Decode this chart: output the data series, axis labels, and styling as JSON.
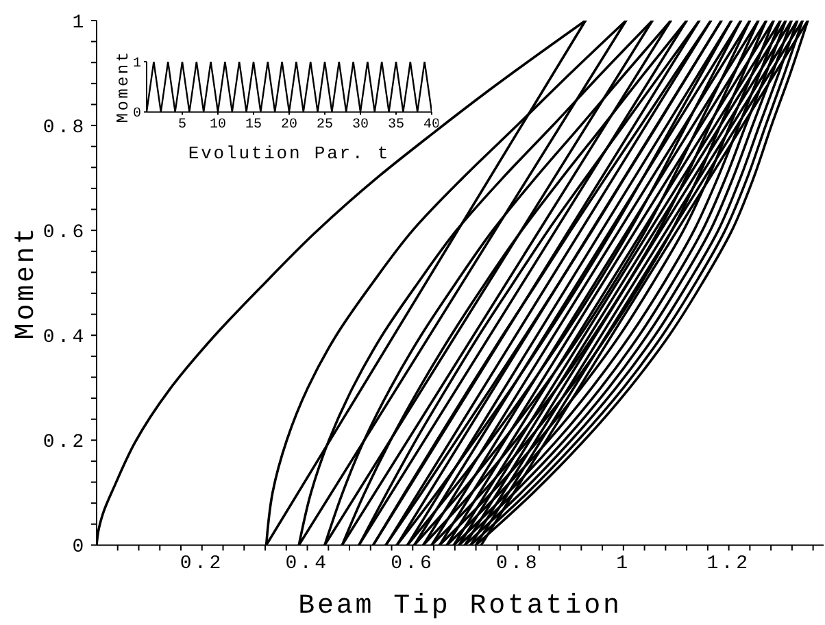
{
  "chart_data": [
    {
      "type": "line",
      "xlabel": "Beam Tip Rotation",
      "ylabel": "Moment",
      "color": "#000000",
      "series": [
        {
          "x": [
            0,
            0.003,
            0.012,
            0.035,
            0.073,
            0.138,
            0.222,
            0.312,
            0.412,
            0.532,
            0.637,
            0.746,
            0.928
          ],
          "values": [
            0,
            0.025,
            0.06,
            0.115,
            0.196,
            0.296,
            0.397,
            0.492,
            0.593,
            0.7,
            0.784,
            0.868,
            1
          ]
        },
        {
          "x": [
            0.928,
            0.322
          ],
          "values": [
            1,
            0
          ]
        },
        {
          "x": [
            0.322,
            0.334,
            0.361,
            0.401,
            0.455,
            0.524,
            0.6,
            0.695,
            0.798,
            0.9,
            1.005
          ],
          "values": [
            0,
            0.1,
            0.2,
            0.3,
            0.4,
            0.5,
            0.6,
            0.7,
            0.8,
            0.9,
            1
          ]
        },
        {
          "x": [
            1.005,
            0.384
          ],
          "values": [
            1,
            0
          ]
        },
        {
          "x": [
            0.384,
            0.407,
            0.441,
            0.486,
            0.542,
            0.61,
            0.683,
            0.771,
            0.866,
            0.959,
            1.055
          ],
          "values": [
            0,
            0.1,
            0.2,
            0.3,
            0.4,
            0.5,
            0.6,
            0.7,
            0.8,
            0.9,
            1
          ]
        },
        {
          "x": [
            1.055,
            0.433
          ],
          "values": [
            1,
            0
          ]
        },
        {
          "x": [
            0.433,
            0.467,
            0.508,
            0.558,
            0.616,
            0.682,
            0.752,
            0.833,
            0.919,
            1.004,
            1.09
          ],
          "values": [
            0,
            0.1,
            0.2,
            0.3,
            0.4,
            0.5,
            0.6,
            0.7,
            0.8,
            0.9,
            1
          ]
        },
        {
          "x": [
            1.09,
            0.466
          ],
          "values": [
            1,
            0
          ]
        },
        {
          "x": [
            0.466,
            0.509,
            0.558,
            0.613,
            0.673,
            0.738,
            0.807,
            0.883,
            0.962,
            1.04,
            1.12
          ],
          "values": [
            0,
            0.1,
            0.2,
            0.3,
            0.4,
            0.5,
            0.6,
            0.7,
            0.8,
            0.9,
            1
          ]
        },
        {
          "x": [
            1.12,
            0.498
          ],
          "values": [
            1,
            0
          ]
        },
        {
          "x": [
            0.498,
            0.551,
            0.606,
            0.665,
            0.726,
            0.791,
            0.857,
            0.928,
            1,
            1.072,
            1.144
          ],
          "values": [
            0,
            0.1,
            0.2,
            0.3,
            0.4,
            0.5,
            0.6,
            0.7,
            0.8,
            0.9,
            1
          ]
        },
        {
          "x": [
            1.144,
            0.525
          ],
          "values": [
            1,
            0
          ]
        },
        {
          "x": [
            0.525,
            0.585,
            0.646,
            0.708,
            0.771,
            0.836,
            0.9,
            0.966,
            1.033,
            1.099,
            1.166
          ],
          "values": [
            0,
            0.1,
            0.2,
            0.3,
            0.4,
            0.5,
            0.6,
            0.7,
            0.8,
            0.9,
            1
          ]
        },
        {
          "x": [
            1.166,
            0.549
          ],
          "values": [
            1,
            0
          ]
        },
        {
          "x": [
            0.549,
            0.617,
            0.683,
            0.749,
            0.814,
            0.878,
            0.941,
            1.002,
            1.064,
            1.125,
            1.186
          ],
          "values": [
            0,
            0.1,
            0.2,
            0.3,
            0.4,
            0.5,
            0.6,
            0.7,
            0.8,
            0.9,
            1
          ]
        },
        {
          "x": [
            1.186,
            0.57
          ],
          "values": [
            1,
            0
          ]
        },
        {
          "x": [
            0.57,
            0.646,
            0.718,
            0.788,
            0.854,
            0.918,
            0.979,
            1.037,
            1.093,
            1.149,
            1.205
          ],
          "values": [
            0,
            0.1,
            0.2,
            0.3,
            0.4,
            0.5,
            0.6,
            0.7,
            0.8,
            0.9,
            1
          ]
        },
        {
          "x": [
            1.205,
            0.59
          ],
          "values": [
            1,
            0
          ]
        },
        {
          "x": [
            0.59,
            0.671,
            0.748,
            0.82,
            0.888,
            0.952,
            1.012,
            1.067,
            1.119,
            1.171,
            1.223
          ],
          "values": [
            0,
            0.1,
            0.2,
            0.3,
            0.4,
            0.5,
            0.6,
            0.7,
            0.8,
            0.9,
            1
          ]
        },
        {
          "x": [
            1.223,
            0.603
          ],
          "values": [
            1,
            0
          ]
        },
        {
          "x": [
            0.603,
            0.691,
            0.772,
            0.848,
            0.918,
            0.982,
            1.042,
            1.094,
            1.143,
            1.192,
            1.24
          ],
          "values": [
            0,
            0.1,
            0.2,
            0.3,
            0.4,
            0.5,
            0.6,
            0.7,
            0.8,
            0.9,
            1
          ]
        },
        {
          "x": [
            1.24,
            0.62
          ],
          "values": [
            1,
            0
          ]
        },
        {
          "x": [
            0.62,
            0.712,
            0.796,
            0.874,
            0.944,
            1.008,
            1.067,
            1.118,
            1.164,
            1.211,
            1.256
          ],
          "values": [
            0,
            0.1,
            0.2,
            0.3,
            0.4,
            0.5,
            0.6,
            0.7,
            0.8,
            0.9,
            1
          ]
        },
        {
          "x": [
            1.256,
            0.636
          ],
          "values": [
            1,
            0
          ]
        },
        {
          "x": [
            0.636,
            0.732,
            0.819,
            0.899,
            0.97,
            1.034,
            1.092,
            1.141,
            1.184,
            1.228,
            1.271
          ],
          "values": [
            0,
            0.1,
            0.2,
            0.3,
            0.4,
            0.5,
            0.6,
            0.7,
            0.8,
            0.9,
            1
          ]
        },
        {
          "x": [
            1.271,
            0.651
          ],
          "values": [
            1,
            0
          ]
        },
        {
          "x": [
            0.651,
            0.75,
            0.839,
            0.92,
            0.993,
            1.056,
            1.114,
            1.161,
            1.202,
            1.245,
            1.285
          ],
          "values": [
            0,
            0.1,
            0.2,
            0.3,
            0.4,
            0.5,
            0.6,
            0.7,
            0.8,
            0.9,
            1
          ]
        },
        {
          "x": [
            1.285,
            0.665
          ],
          "values": [
            1,
            0
          ]
        },
        {
          "x": [
            0.665,
            0.766,
            0.858,
            0.94,
            1.013,
            1.077,
            1.134,
            1.179,
            1.219,
            1.259,
            1.298
          ],
          "values": [
            0,
            0.1,
            0.2,
            0.3,
            0.4,
            0.5,
            0.6,
            0.7,
            0.8,
            0.9,
            1
          ]
        },
        {
          "x": [
            1.298,
            0.678
          ],
          "values": [
            1,
            0
          ]
        },
        {
          "x": [
            0.678,
            0.781,
            0.874,
            0.957,
            1.03,
            1.093,
            1.15,
            1.194,
            1.232,
            1.271,
            1.308
          ],
          "values": [
            0,
            0.1,
            0.2,
            0.3,
            0.4,
            0.5,
            0.6,
            0.7,
            0.8,
            0.9,
            1
          ]
        },
        {
          "x": [
            1.308,
            0.688
          ],
          "values": [
            1,
            0
          ]
        },
        {
          "x": [
            0.688,
            0.793,
            0.888,
            0.972,
            1.045,
            1.108,
            1.165,
            1.208,
            1.245,
            1.283,
            1.319
          ],
          "values": [
            0,
            0.1,
            0.2,
            0.3,
            0.4,
            0.5,
            0.6,
            0.7,
            0.8,
            0.9,
            1
          ]
        },
        {
          "x": [
            1.319,
            0.699
          ],
          "values": [
            1,
            0
          ]
        },
        {
          "x": [
            0.699,
            0.806,
            0.901,
            0.986,
            1.06,
            1.123,
            1.18,
            1.222,
            1.258,
            1.295,
            1.33
          ],
          "values": [
            0,
            0.1,
            0.2,
            0.3,
            0.4,
            0.5,
            0.6,
            0.7,
            0.8,
            0.9,
            1
          ]
        },
        {
          "x": [
            1.33,
            0.71
          ],
          "values": [
            1,
            0
          ]
        },
        {
          "x": [
            0.71,
            0.818,
            0.914,
            1,
            1.074,
            1.137,
            1.193,
            1.235,
            1.27,
            1.306,
            1.34
          ],
          "values": [
            0,
            0.1,
            0.2,
            0.3,
            0.4,
            0.5,
            0.6,
            0.7,
            0.8,
            0.9,
            1
          ]
        },
        {
          "x": [
            1.34,
            0.72
          ],
          "values": [
            1,
            0
          ]
        },
        {
          "x": [
            0.72,
            0.829,
            0.926,
            1.012,
            1.087,
            1.15,
            1.206,
            1.247,
            1.281,
            1.317,
            1.35
          ],
          "values": [
            0,
            0.1,
            0.2,
            0.3,
            0.4,
            0.5,
            0.6,
            0.7,
            0.8,
            0.9,
            1
          ]
        },
        {
          "x": [
            1.35,
            0.73
          ],
          "values": [
            1,
            0
          ]
        }
      ],
      "xlim": [
        0,
        1.38
      ],
      "xticks": [
        {
          "value": 0.04,
          "label": null
        },
        {
          "value": 0.08,
          "label": null
        },
        {
          "value": 0.12,
          "label": null
        },
        {
          "value": 0.16,
          "label": null
        },
        0.2,
        {
          "value": 0.24,
          "label": null
        },
        {
          "value": 0.28,
          "label": null
        },
        {
          "value": 0.32,
          "label": null
        },
        {
          "value": 0.36,
          "label": null
        },
        0.4,
        {
          "value": 0.44,
          "label": null
        },
        {
          "value": 0.48,
          "label": null
        },
        {
          "value": 0.52,
          "label": null
        },
        {
          "value": 0.56,
          "label": null
        },
        0.6,
        {
          "value": 0.64,
          "label": null
        },
        {
          "value": 0.68,
          "label": null
        },
        {
          "value": 0.72,
          "label": null
        },
        {
          "value": 0.76,
          "label": null
        },
        0.8,
        {
          "value": 0.84,
          "label": null
        },
        {
          "value": 0.88,
          "label": null
        },
        {
          "value": 0.92,
          "label": null
        },
        {
          "value": 0.96,
          "label": null
        },
        1,
        {
          "value": 1.04,
          "label": null
        },
        {
          "value": 1.08,
          "label": null
        },
        {
          "value": 1.12,
          "label": null
        },
        {
          "value": 1.16,
          "label": null
        },
        1.2,
        {
          "value": 1.24,
          "label": null
        },
        {
          "value": 1.28,
          "label": null
        },
        {
          "value": 1.32,
          "label": null
        },
        {
          "value": 1.36,
          "label": null
        }
      ],
      "ylim": [
        0,
        1
      ],
      "yticks": [
        0,
        {
          "value": 0.04,
          "label": null
        },
        {
          "value": 0.08,
          "label": null
        },
        {
          "value": 0.12,
          "label": null
        },
        {
          "value": 0.16,
          "label": null
        },
        0.2,
        {
          "value": 0.24,
          "label": null
        },
        {
          "value": 0.28,
          "label": null
        },
        {
          "value": 0.32,
          "label": null
        },
        {
          "value": 0.36,
          "label": null
        },
        0.4,
        {
          "value": 0.44,
          "label": null
        },
        {
          "value": 0.48,
          "label": null
        },
        {
          "value": 0.52,
          "label": null
        },
        {
          "value": 0.56,
          "label": null
        },
        0.6,
        {
          "value": 0.64,
          "label": null
        },
        {
          "value": 0.68,
          "label": null
        },
        {
          "value": 0.72,
          "label": null
        },
        {
          "value": 0.76,
          "label": null
        },
        0.8,
        {
          "value": 0.84,
          "label": null
        },
        {
          "value": 0.88,
          "label": null
        },
        {
          "value": 0.92,
          "label": null
        },
        {
          "value": 0.96,
          "label": null
        },
        1
      ]
    },
    {
      "type": "line",
      "xlabel": "Evolution Par. t",
      "ylabel": "Moment",
      "color": "#000000",
      "x": [
        0,
        1,
        2,
        3,
        4,
        5,
        6,
        7,
        8,
        9,
        10,
        11,
        12,
        13,
        14,
        15,
        16,
        17,
        18,
        19,
        20,
        21,
        22,
        23,
        24,
        25,
        26,
        27,
        28,
        29,
        30,
        31,
        32,
        33,
        34,
        35,
        36,
        37,
        38,
        39,
        40
      ],
      "values": [
        0,
        1,
        0,
        1,
        0,
        1,
        0,
        1,
        0,
        1,
        0,
        1,
        0,
        1,
        0,
        1,
        0,
        1,
        0,
        1,
        0,
        1,
        0,
        1,
        0,
        1,
        0,
        1,
        0,
        1,
        0,
        1,
        0,
        1,
        0,
        1,
        0,
        1,
        0,
        1,
        0
      ],
      "xlim": [
        0,
        40
      ],
      "xticks": [
        5,
        10,
        15,
        20,
        25,
        30,
        35,
        40
      ],
      "ylim": [
        0,
        1
      ],
      "yticks": [
        0,
        1
      ]
    }
  ]
}
